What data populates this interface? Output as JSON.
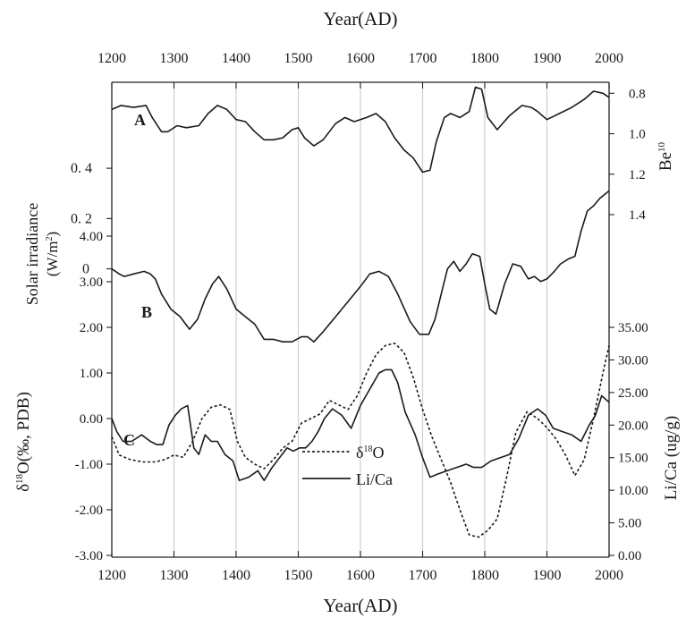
{
  "figure": {
    "top_axis_title": "Year(AD)",
    "bottom_axis_title": "Year(AD)",
    "legend": {
      "dashed": "δ¹⁸O",
      "solid": "Li/Ca"
    }
  },
  "chart_data": [
    {
      "panel": "A",
      "type": "line",
      "x_label": "Year(AD)",
      "y_label": "Be10",
      "y_axis_side": "right",
      "y_axis_inverted": true,
      "xlim": [
        1200,
        2000
      ],
      "ylim": [
        1.4,
        0.75
      ],
      "x_ticks": [
        1200,
        1300,
        1400,
        1500,
        1600,
        1700,
        1800,
        1900,
        2000
      ],
      "y_ticks": [
        "0.8",
        "1.0",
        "1.2",
        "1.4"
      ],
      "grid": "vertical",
      "series": [
        {
          "x": [
            1200,
            1215,
            1235,
            1255,
            1265,
            1280,
            1290,
            1305,
            1320,
            1340,
            1355,
            1370,
            1385,
            1400,
            1415,
            1430,
            1445,
            1460,
            1475,
            1490,
            1500,
            1510,
            1525,
            1540,
            1560,
            1575,
            1590,
            1610,
            1625,
            1640,
            1655,
            1670,
            1685,
            1700,
            1712,
            1722,
            1735,
            1745,
            1760,
            1775,
            1785,
            1795,
            1805,
            1820,
            1840,
            1860,
            1875,
            1885,
            1900,
            1920,
            1940,
            1960,
            1975,
            1990,
            2000
          ],
          "y": [
            0.88,
            0.86,
            0.87,
            0.86,
            0.92,
            0.99,
            0.99,
            0.96,
            0.97,
            0.96,
            0.9,
            0.86,
            0.88,
            0.93,
            0.94,
            0.99,
            1.03,
            1.03,
            1.02,
            0.98,
            0.97,
            1.02,
            1.06,
            1.03,
            0.95,
            0.92,
            0.94,
            0.92,
            0.9,
            0.94,
            1.02,
            1.08,
            1.12,
            1.19,
            1.18,
            1.04,
            0.92,
            0.9,
            0.92,
            0.89,
            0.77,
            0.78,
            0.92,
            0.98,
            0.91,
            0.86,
            0.87,
            0.89,
            0.93,
            0.9,
            0.87,
            0.83,
            0.79,
            0.8,
            0.82
          ]
        }
      ]
    },
    {
      "panel": "B",
      "type": "line",
      "x_label": "Year(AD)",
      "y_label": "Solar irradiance (W/m²)",
      "y_axis_side": "left",
      "xlim": [
        1200,
        2000
      ],
      "ylim": [
        -0.3,
        0.5
      ],
      "y_ticks": [
        "0",
        "0. 2",
        "0. 4"
      ],
      "series": [
        {
          "x": [
            1200,
            1212,
            1220,
            1235,
            1252,
            1262,
            1270,
            1280,
            1295,
            1310,
            1325,
            1338,
            1350,
            1362,
            1372,
            1385,
            1400,
            1415,
            1430,
            1445,
            1460,
            1475,
            1490,
            1505,
            1515,
            1525,
            1540,
            1560,
            1580,
            1600,
            1615,
            1630,
            1645,
            1660,
            1680,
            1695,
            1710,
            1720,
            1732,
            1740,
            1750,
            1760,
            1770,
            1780,
            1792,
            1800,
            1808,
            1818,
            1832,
            1845,
            1858,
            1870,
            1880,
            1890,
            1900,
            1912,
            1922,
            1935,
            1945,
            1955,
            1965,
            1975,
            1985,
            2000
          ],
          "y": [
            0.0,
            -0.02,
            -0.03,
            -0.02,
            -0.01,
            -0.02,
            -0.04,
            -0.1,
            -0.16,
            -0.19,
            -0.24,
            -0.2,
            -0.12,
            -0.06,
            -0.03,
            -0.08,
            -0.16,
            -0.19,
            -0.22,
            -0.28,
            -0.28,
            -0.29,
            -0.29,
            -0.27,
            -0.27,
            -0.29,
            -0.25,
            -0.19,
            -0.13,
            -0.07,
            -0.02,
            -0.01,
            -0.03,
            -0.1,
            -0.21,
            -0.26,
            -0.26,
            -0.2,
            -0.08,
            0.0,
            0.03,
            -0.01,
            0.02,
            0.06,
            0.05,
            -0.06,
            -0.16,
            -0.18,
            -0.06,
            0.02,
            0.01,
            -0.04,
            -0.03,
            -0.05,
            -0.04,
            -0.01,
            0.02,
            0.04,
            0.05,
            0.15,
            0.23,
            0.25,
            0.28,
            0.31
          ]
        }
      ]
    },
    {
      "panel": "C",
      "type": "line",
      "x_label": "Year(AD)",
      "y_label_left": "δ18O(‰, PDB)",
      "y_label_right": "Li/Ca (ug/g)",
      "xlim": [
        1200,
        2000
      ],
      "ylim_left": [
        -3.0,
        4.0
      ],
      "ylim_right": [
        0,
        35
      ],
      "y_ticks_left": [
        "-3.00",
        "-2.00",
        "-1.00",
        "0.00",
        "1.00",
        "2.00",
        "3.00",
        "4.00"
      ],
      "y_ticks_right": [
        "0.00",
        "5.00",
        "10.00",
        "15.00",
        "20.00",
        "25.00",
        "30.00",
        "35.00"
      ],
      "series": [
        {
          "name": "δ18O",
          "style": "dashed",
          "x": [
            1200,
            1212,
            1230,
            1250,
            1270,
            1285,
            1300,
            1315,
            1330,
            1345,
            1360,
            1375,
            1390,
            1402,
            1415,
            1430,
            1445,
            1460,
            1475,
            1490,
            1505,
            1520,
            1535,
            1550,
            1565,
            1580,
            1595,
            1610,
            1625,
            1640,
            1655,
            1670,
            1685,
            1700,
            1715,
            1730,
            1745,
            1760,
            1775,
            1790,
            1805,
            1820,
            1835,
            1850,
            1868,
            1885,
            1900,
            1915,
            1930,
            1945,
            1960,
            1975,
            1990,
            2000
          ],
          "y": [
            -0.4,
            -0.8,
            -0.9,
            -0.95,
            -0.95,
            -0.9,
            -0.8,
            -0.85,
            -0.5,
            0.0,
            0.25,
            0.3,
            0.2,
            -0.5,
            -0.85,
            -1.0,
            -1.1,
            -0.9,
            -0.65,
            -0.5,
            -0.1,
            0.0,
            0.1,
            0.4,
            0.3,
            0.2,
            0.5,
            1.0,
            1.4,
            1.6,
            1.65,
            1.45,
            0.9,
            0.2,
            -0.4,
            -0.9,
            -1.4,
            -2.0,
            -2.55,
            -2.6,
            -2.45,
            -2.2,
            -1.3,
            -0.3,
            0.15,
            0.0,
            -0.2,
            -0.45,
            -0.8,
            -1.25,
            -0.9,
            0.0,
            1.0,
            1.6
          ]
        },
        {
          "name": "Li/Ca",
          "style": "solid",
          "x": [
            1200,
            1208,
            1218,
            1232,
            1248,
            1262,
            1272,
            1282,
            1292,
            1302,
            1312,
            1322,
            1332,
            1340,
            1350,
            1360,
            1370,
            1382,
            1395,
            1405,
            1420,
            1435,
            1445,
            1458,
            1470,
            1482,
            1492,
            1502,
            1512,
            1522,
            1532,
            1542,
            1555,
            1570,
            1585,
            1600,
            1615,
            1630,
            1640,
            1650,
            1660,
            1672,
            1688,
            1700,
            1712,
            1725,
            1740,
            1755,
            1770,
            1782,
            1795,
            1810,
            1825,
            1840,
            1855,
            1870,
            1885,
            1898,
            1910,
            1925,
            1940,
            1955,
            1968,
            1978,
            1988,
            2000
          ],
          "y": [
            21.0,
            19.0,
            17.5,
            17.5,
            18.5,
            17.5,
            17.0,
            17.0,
            20.0,
            21.5,
            22.5,
            23.0,
            16.5,
            15.5,
            18.5,
            17.5,
            17.5,
            15.5,
            14.5,
            11.5,
            12.0,
            13.0,
            11.5,
            13.5,
            15.0,
            16.5,
            16.0,
            16.5,
            16.5,
            17.5,
            19.0,
            21.0,
            22.5,
            21.5,
            19.5,
            23.0,
            25.5,
            28.0,
            28.5,
            28.5,
            26.5,
            22.0,
            18.5,
            15.0,
            12.0,
            12.5,
            13.0,
            13.5,
            14.0,
            13.5,
            13.5,
            14.5,
            15.0,
            15.5,
            18.0,
            21.5,
            22.5,
            21.5,
            19.5,
            19.0,
            18.5,
            17.5,
            20.0,
            21.5,
            24.5,
            23.5
          ]
        }
      ]
    }
  ]
}
